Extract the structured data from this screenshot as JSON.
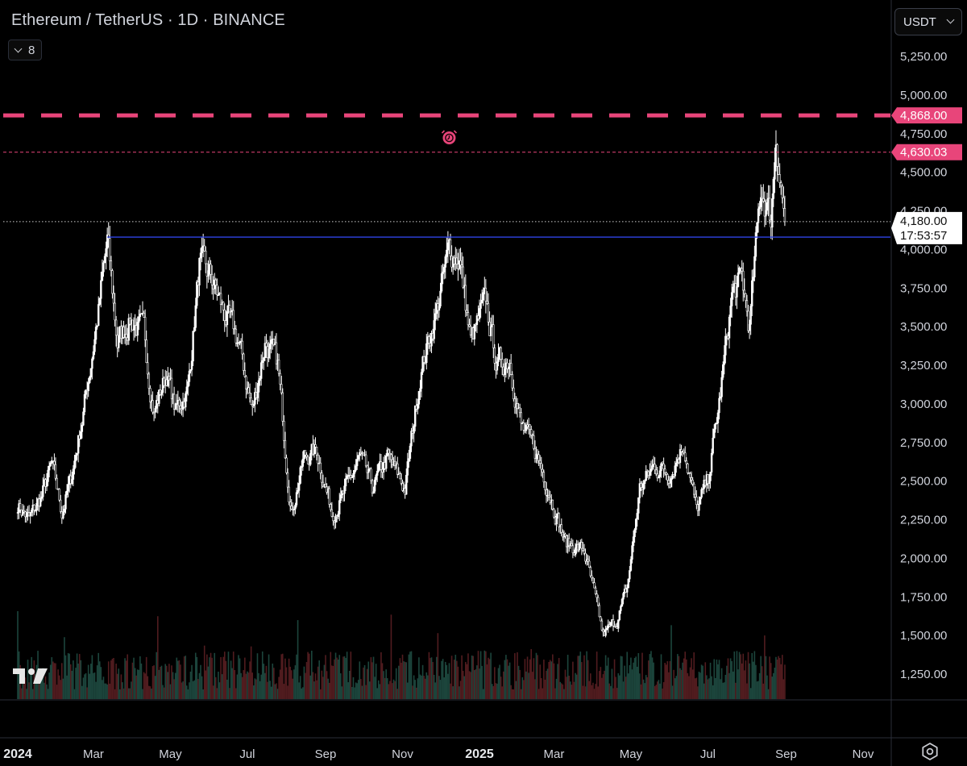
{
  "header": {
    "symbol": "Ethereum / TetherUS · 1D · BINANCE",
    "indicator_count": "8",
    "currency": "USDT"
  },
  "colors": {
    "background": "#000000",
    "candle": "#ffffff",
    "alert": "#e8457a",
    "support_line": "#2f43e6",
    "volume_up": "#1f4d43",
    "volume_down": "#5a1f22",
    "axis_text": "#d1d4dc"
  },
  "icons": {
    "alarm": "alarm-clock-icon",
    "logo": "tradingview-logo",
    "settings": "gear-icon"
  },
  "price_labels": {
    "alert_1": "4,868.00",
    "alert_2": "4,630.03",
    "last_price": "4,180.00",
    "countdown": "17:53:57"
  },
  "chart_data": {
    "type": "candlestick",
    "title": "Ethereum / TetherUS · 1D · BINANCE",
    "xlabel": "",
    "ylabel": "",
    "ylim": [
      1050,
      5450
    ],
    "y_ticks": [
      "5,250.00",
      "5,000.00",
      "4,750.00",
      "4,500.00",
      "4,250.00",
      "4,000.00",
      "3,750.00",
      "3,500.00",
      "3,250.00",
      "3,000.00",
      "2,750.00",
      "2,500.00",
      "2,250.00",
      "2,000.00",
      "1,750.00",
      "1,500.00",
      "1,250.00"
    ],
    "y_tick_values": [
      5250,
      5000,
      4750,
      4500,
      4250,
      4000,
      3750,
      3500,
      3250,
      3000,
      2750,
      2500,
      2250,
      2000,
      1750,
      1500,
      1250
    ],
    "x_range": [
      "2024-01-01",
      "2025-12-10"
    ],
    "x_ticks": [
      {
        "date": "2024-01-01",
        "label": "2024",
        "bold": true
      },
      {
        "date": "2024-03-01",
        "label": "Mar",
        "bold": false
      },
      {
        "date": "2024-05-01",
        "label": "May",
        "bold": false
      },
      {
        "date": "2024-07-01",
        "label": "Jul",
        "bold": false
      },
      {
        "date": "2024-09-01",
        "label": "Sep",
        "bold": false
      },
      {
        "date": "2024-11-01",
        "label": "Nov",
        "bold": false
      },
      {
        "date": "2025-01-01",
        "label": "2025",
        "bold": true
      },
      {
        "date": "2025-03-01",
        "label": "Mar",
        "bold": false
      },
      {
        "date": "2025-05-01",
        "label": "May",
        "bold": false
      },
      {
        "date": "2025-07-01",
        "label": "Jul",
        "bold": false
      },
      {
        "date": "2025-09-01",
        "label": "Sep",
        "bold": false
      },
      {
        "date": "2025-11-01",
        "label": "Nov",
        "bold": false
      }
    ],
    "price_path": [
      [
        "2024-01-01",
        2350
      ],
      [
        "2024-01-10",
        2250
      ],
      [
        "2024-01-20",
        2400
      ],
      [
        "2024-01-28",
        2600
      ],
      [
        "2024-02-05",
        2300
      ],
      [
        "2024-02-12",
        2500
      ],
      [
        "2024-02-22",
        2950
      ],
      [
        "2024-03-05",
        3600
      ],
      [
        "2024-03-12",
        4050
      ],
      [
        "2024-03-20",
        3400
      ],
      [
        "2024-03-30",
        3550
      ],
      [
        "2024-04-10",
        3450
      ],
      [
        "2024-04-18",
        2950
      ],
      [
        "2024-04-28",
        3200
      ],
      [
        "2024-05-05",
        2950
      ],
      [
        "2024-05-15",
        3100
      ],
      [
        "2024-05-24",
        3900
      ],
      [
        "2024-06-03",
        3800
      ],
      [
        "2024-06-12",
        3600
      ],
      [
        "2024-06-24",
        3400
      ],
      [
        "2024-07-05",
        2950
      ],
      [
        "2024-07-15",
        3400
      ],
      [
        "2024-07-25",
        3250
      ],
      [
        "2024-08-05",
        2300
      ],
      [
        "2024-08-15",
        2650
      ],
      [
        "2024-08-25",
        2700
      ],
      [
        "2024-09-06",
        2300
      ],
      [
        "2024-09-15",
        2400
      ],
      [
        "2024-09-28",
        2650
      ],
      [
        "2024-10-08",
        2450
      ],
      [
        "2024-10-20",
        2650
      ],
      [
        "2024-11-03",
        2450
      ],
      [
        "2024-11-15",
        3200
      ],
      [
        "2024-11-28",
        3600
      ],
      [
        "2024-12-08",
        4000
      ],
      [
        "2024-12-16",
        3950
      ],
      [
        "2024-12-25",
        3400
      ],
      [
        "2025-01-06",
        3650
      ],
      [
        "2025-01-15",
        3250
      ],
      [
        "2025-01-25",
        3300
      ],
      [
        "2025-02-03",
        2850
      ],
      [
        "2025-02-14",
        2700
      ],
      [
        "2025-02-25",
        2450
      ],
      [
        "2025-03-10",
        2100
      ],
      [
        "2025-03-25",
        2050
      ],
      [
        "2025-04-09",
        1500
      ],
      [
        "2025-04-20",
        1600
      ],
      [
        "2025-04-28",
        1800
      ],
      [
        "2025-05-08",
        2450
      ],
      [
        "2025-05-20",
        2600
      ],
      [
        "2025-06-01",
        2550
      ],
      [
        "2025-06-12",
        2750
      ],
      [
        "2025-06-22",
        2300
      ],
      [
        "2025-07-01",
        2500
      ],
      [
        "2025-07-10",
        3000
      ],
      [
        "2025-07-20",
        3700
      ],
      [
        "2025-07-28",
        3800
      ],
      [
        "2025-08-03",
        3500
      ],
      [
        "2025-08-12",
        4400
      ],
      [
        "2025-08-20",
        4200
      ],
      [
        "2025-08-24",
        4750
      ],
      [
        "2025-08-27",
        4500
      ],
      [
        "2025-08-31",
        4180
      ]
    ],
    "alert_levels": [
      {
        "price": 4868,
        "style": "thick-dashed",
        "label": "4,868.00"
      },
      {
        "price": 4630.03,
        "style": "thin-dashed",
        "label": "4,630.03"
      }
    ],
    "horizontal_line": {
      "price": 4080,
      "from": "2024-03-12",
      "to": "2025-12-10"
    },
    "last_price": 4180,
    "alarm_marker": {
      "date": "2024-12-08"
    },
    "grid": false,
    "volume": "shown at bottom"
  }
}
